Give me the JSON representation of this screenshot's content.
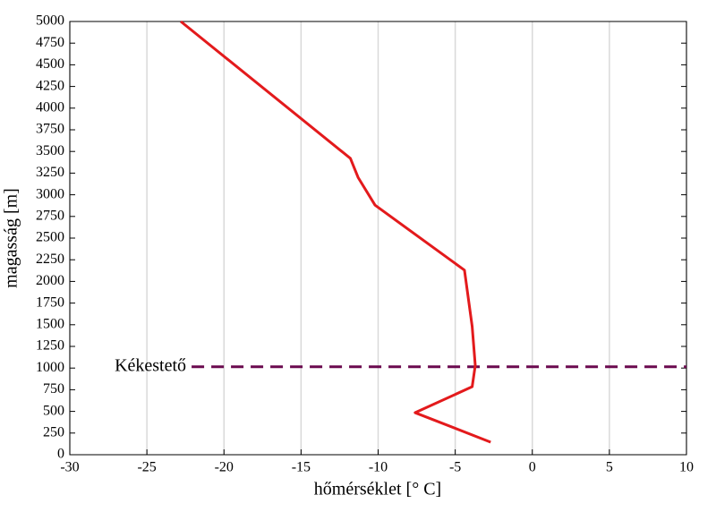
{
  "chart_data": {
    "type": "line",
    "x_label": "hőmérséklet [° C]",
    "y_label": "magasság [m]",
    "series": [
      {
        "color": "#e31a1c",
        "x": [
          -22.8,
          -11.8,
          -11.3,
          -10.2,
          -4.4,
          -3.9,
          -3.7,
          -3.9,
          -7.6,
          -2.7
        ],
        "values": [
          5000,
          3420,
          3200,
          2880,
          2130,
          1480,
          1030,
          785,
          485,
          145
        ]
      }
    ],
    "reference_line": {
      "label": "Kékestető",
      "value": 1015,
      "x_from": -22.1,
      "color": "#6b0a4f"
    },
    "xlim": [
      -30,
      10
    ],
    "xticks": [
      -30,
      -25,
      -20,
      -15,
      -10,
      -5,
      0,
      5,
      10
    ],
    "ylim": [
      0,
      5000
    ],
    "yticks": [
      0,
      250,
      500,
      750,
      1000,
      1250,
      1500,
      1750,
      2000,
      2250,
      2500,
      2750,
      3000,
      3250,
      3500,
      3750,
      4000,
      4250,
      4500,
      4750,
      5000
    ],
    "grid": true
  }
}
